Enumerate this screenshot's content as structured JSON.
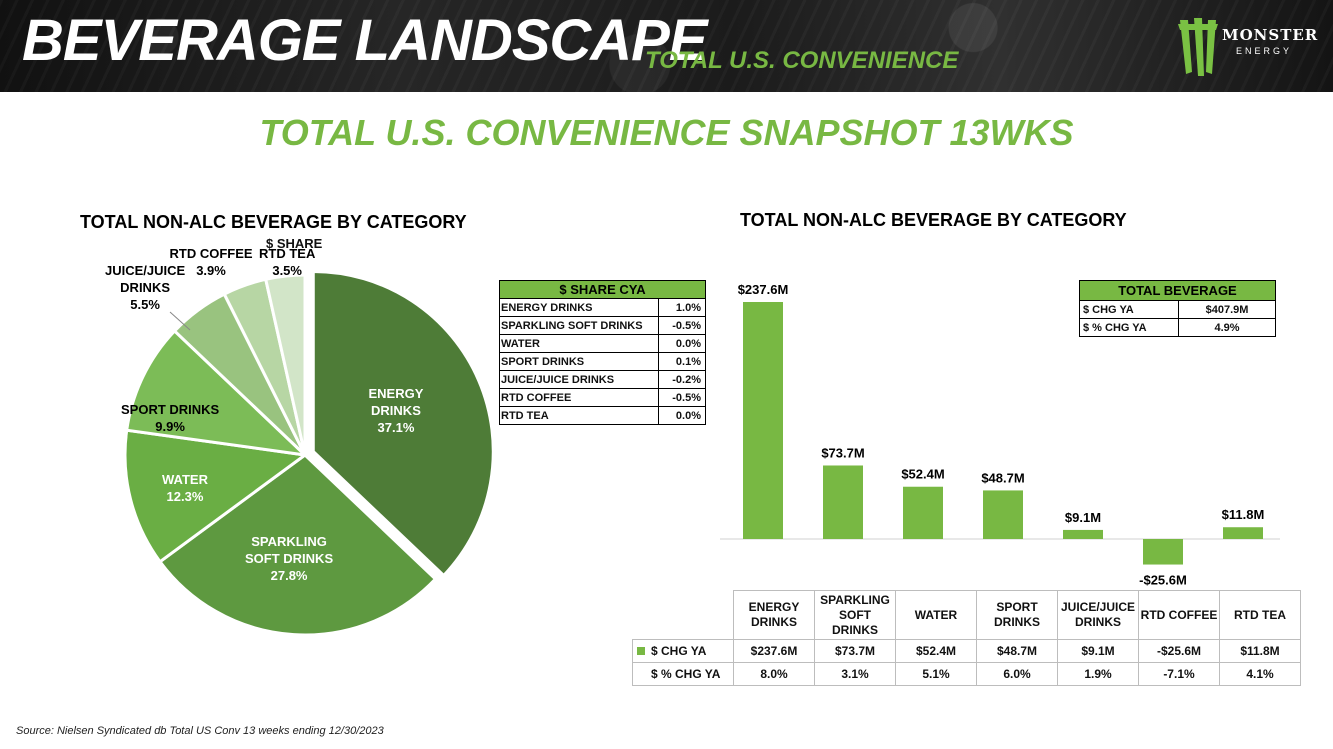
{
  "header": {
    "title": "BEVERAGE LANDSCAPE",
    "subtitle": "TOTAL U.S. CONVENIENCE",
    "logo_text": "MONSTER",
    "logo_sub": "ENERGY"
  },
  "main_title": "TOTAL U.S. CONVENIENCE SNAPSHOT 13WKS",
  "pie_section": {
    "title": "TOTAL NON-ALC BEVERAGE BY CATEGORY",
    "subtitle": "$ SHARE"
  },
  "bar_section": {
    "title": "TOTAL NON-ALC BEVERAGE BY CATEGORY"
  },
  "colors": {
    "accent": "#78b843",
    "pie": [
      "#4e7c37",
      "#5e9940",
      "#6aae44",
      "#7cbc57",
      "#99c37f",
      "#b7d6a4",
      "#d2e5c8"
    ],
    "bar": "#78b843"
  },
  "share_table": {
    "title": "$ SHARE CYA",
    "rows": [
      {
        "category": "ENERGY DRINKS",
        "value": "1.0%"
      },
      {
        "category": "SPARKLING SOFT DRINKS",
        "value": "-0.5%"
      },
      {
        "category": "WATER",
        "value": "0.0%"
      },
      {
        "category": "SPORT DRINKS",
        "value": "0.1%"
      },
      {
        "category": "JUICE/JUICE DRINKS",
        "value": "-0.2%"
      },
      {
        "category": "RTD COFFEE",
        "value": "-0.5%"
      },
      {
        "category": "RTD TEA",
        "value": "0.0%"
      }
    ]
  },
  "total_table": {
    "title": "TOTAL BEVERAGE",
    "rows": [
      {
        "label": "$ CHG YA",
        "value": "$407.9M"
      },
      {
        "label": "$ % CHG YA",
        "value": "4.9%"
      }
    ]
  },
  "chart_data": [
    {
      "type": "pie",
      "title": "TOTAL NON-ALC BEVERAGE BY CATEGORY",
      "subtitle": "$ SHARE",
      "labels": [
        "ENERGY DRINKS",
        "SPARKLING SOFT DRINKS",
        "WATER",
        "SPORT DRINKS",
        "JUICE/JUICE DRINKS",
        "RTD COFFEE",
        "RTD TEA"
      ],
      "values": [
        37.1,
        27.8,
        12.3,
        9.9,
        5.5,
        3.9,
        3.5
      ],
      "value_labels": [
        "37.1%",
        "27.8%",
        "12.3%",
        "9.9%",
        "5.5%",
        "3.9%",
        "3.5%"
      ],
      "exploded": "ENERGY DRINKS"
    },
    {
      "type": "bar",
      "title": "TOTAL NON-ALC BEVERAGE BY CATEGORY",
      "categories": [
        "ENERGY DRINKS",
        "SPARKLING SOFT DRINKS",
        "WATER",
        "SPORT DRINKS",
        "JUICE/JUICE DRINKS",
        "RTD COFFEE",
        "RTD TEA"
      ],
      "series": [
        {
          "name": "$ CHG YA",
          "values": [
            237.6,
            73.7,
            52.4,
            48.7,
            9.1,
            -25.6,
            11.8
          ],
          "labels": [
            "$237.6M",
            "$73.7M",
            "$52.4M",
            "$48.7M",
            "$9.1M",
            "-$25.6M",
            "$11.8M"
          ]
        }
      ],
      "table_rows": [
        {
          "name": "$ CHG YA",
          "values": [
            "$237.6M",
            "$73.7M",
            "$52.4M",
            "$48.7M",
            "$9.1M",
            "-$25.6M",
            "$11.8M"
          ]
        },
        {
          "name": "$ % CHG YA",
          "values": [
            "8.0%",
            "3.1%",
            "5.1%",
            "6.0%",
            "1.9%",
            "-7.1%",
            "4.1%"
          ]
        }
      ],
      "ylim": [
        -25.6,
        237.6
      ],
      "legend": "table"
    }
  ],
  "source": "Source: Nielsen Syndicated db Total US Conv 13 weeks ending 12/30/2023"
}
